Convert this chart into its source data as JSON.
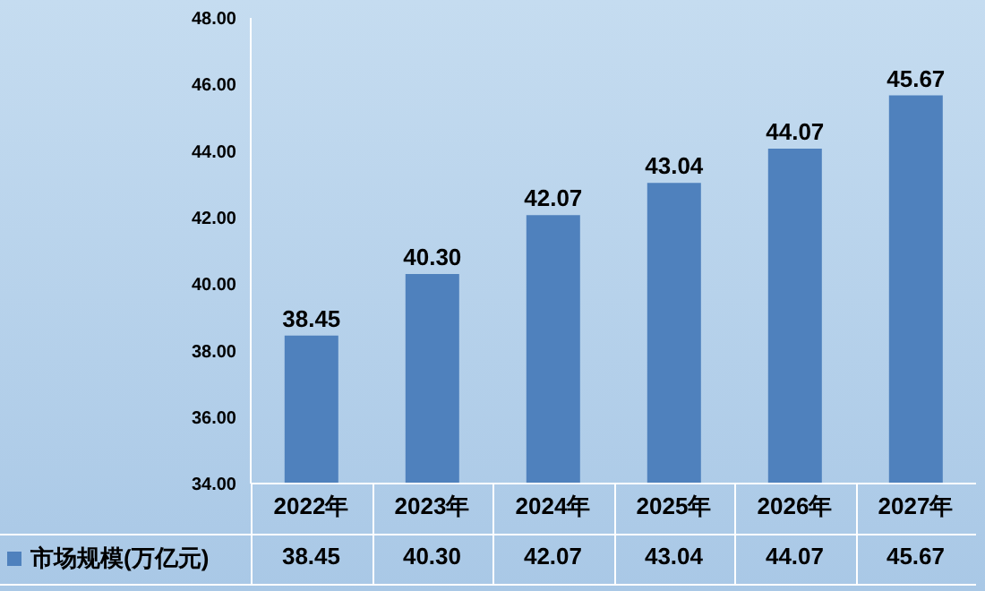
{
  "chart_data": {
    "type": "bar",
    "categories": [
      "2022年",
      "2023年",
      "2024年",
      "2025年",
      "2026年",
      "2027年"
    ],
    "series": [
      {
        "name": "市场规模(万亿元)",
        "color": "#4f81bd",
        "values": [
          38.45,
          40.3,
          42.07,
          43.04,
          44.07,
          45.67
        ],
        "value_labels": [
          "38.45",
          "40.30",
          "42.07",
          "43.04",
          "44.07",
          "45.67"
        ]
      }
    ],
    "ylim": [
      34,
      48
    ],
    "yticks": [
      {
        "value": 34,
        "label": "34.00"
      },
      {
        "value": 36,
        "label": "36.00"
      },
      {
        "value": 38,
        "label": "38.00"
      },
      {
        "value": 40,
        "label": "40.00"
      },
      {
        "value": 42,
        "label": "42.00"
      },
      {
        "value": 44,
        "label": "44.00"
      },
      {
        "value": 46,
        "label": "46.00"
      },
      {
        "value": 48,
        "label": "48.00"
      }
    ],
    "grid": false,
    "legend": "bottom"
  }
}
